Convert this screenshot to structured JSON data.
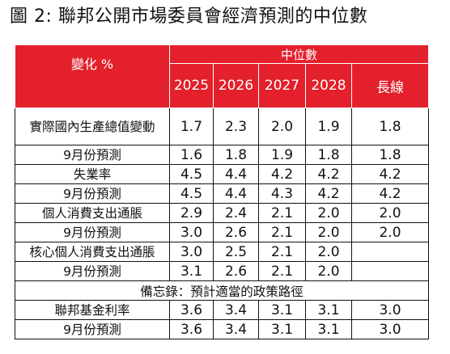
{
  "title": "圖 2: 聯邦公開市場委員會經濟預測的中位數",
  "table": {
    "row_header": "變化 %",
    "group_header": "中位數",
    "columns": [
      "2025",
      "2026",
      "2027",
      "2028",
      "長線"
    ],
    "rows": [
      {
        "label": "實際國內生產總值變動",
        "values": [
          "1.7",
          "2.3",
          "2.0",
          "1.9",
          "1.8"
        ]
      },
      {
        "label": "9月份預測",
        "values": [
          "1.6",
          "1.8",
          "1.9",
          "1.8",
          "1.8"
        ]
      },
      {
        "label": "失業率",
        "values": [
          "4.5",
          "4.4",
          "4.2",
          "4.2",
          "4.2"
        ]
      },
      {
        "label": "9月份預測",
        "values": [
          "4.5",
          "4.4",
          "4.3",
          "4.2",
          "4.2"
        ]
      },
      {
        "label": "個人消費支出通脹",
        "values": [
          "2.9",
          "2.4",
          "2.1",
          "2.0",
          "2.0"
        ]
      },
      {
        "label": "9月份預測",
        "values": [
          "3.0",
          "2.6",
          "2.1",
          "2.0",
          "2.0"
        ]
      },
      {
        "label": "核心個人消費支出通脹",
        "values": [
          "3.0",
          "2.5",
          "2.1",
          "2.0",
          ""
        ]
      },
      {
        "label": "9月份預測",
        "values": [
          "3.1",
          "2.6",
          "2.1",
          "2.0",
          ""
        ]
      }
    ],
    "memo": "備忘錄：預計適當的政策路徑",
    "memo_rows": [
      {
        "label": "聯邦基金利率",
        "values": [
          "3.6",
          "3.4",
          "3.1",
          "3.1",
          "3.0"
        ]
      },
      {
        "label": "9月份預測",
        "values": [
          "3.6",
          "3.4",
          "3.1",
          "3.1",
          "3.0"
        ]
      }
    ]
  },
  "colors": {
    "header_bg": "#e3202b",
    "header_text": "#ffffff",
    "border": "#111111"
  }
}
